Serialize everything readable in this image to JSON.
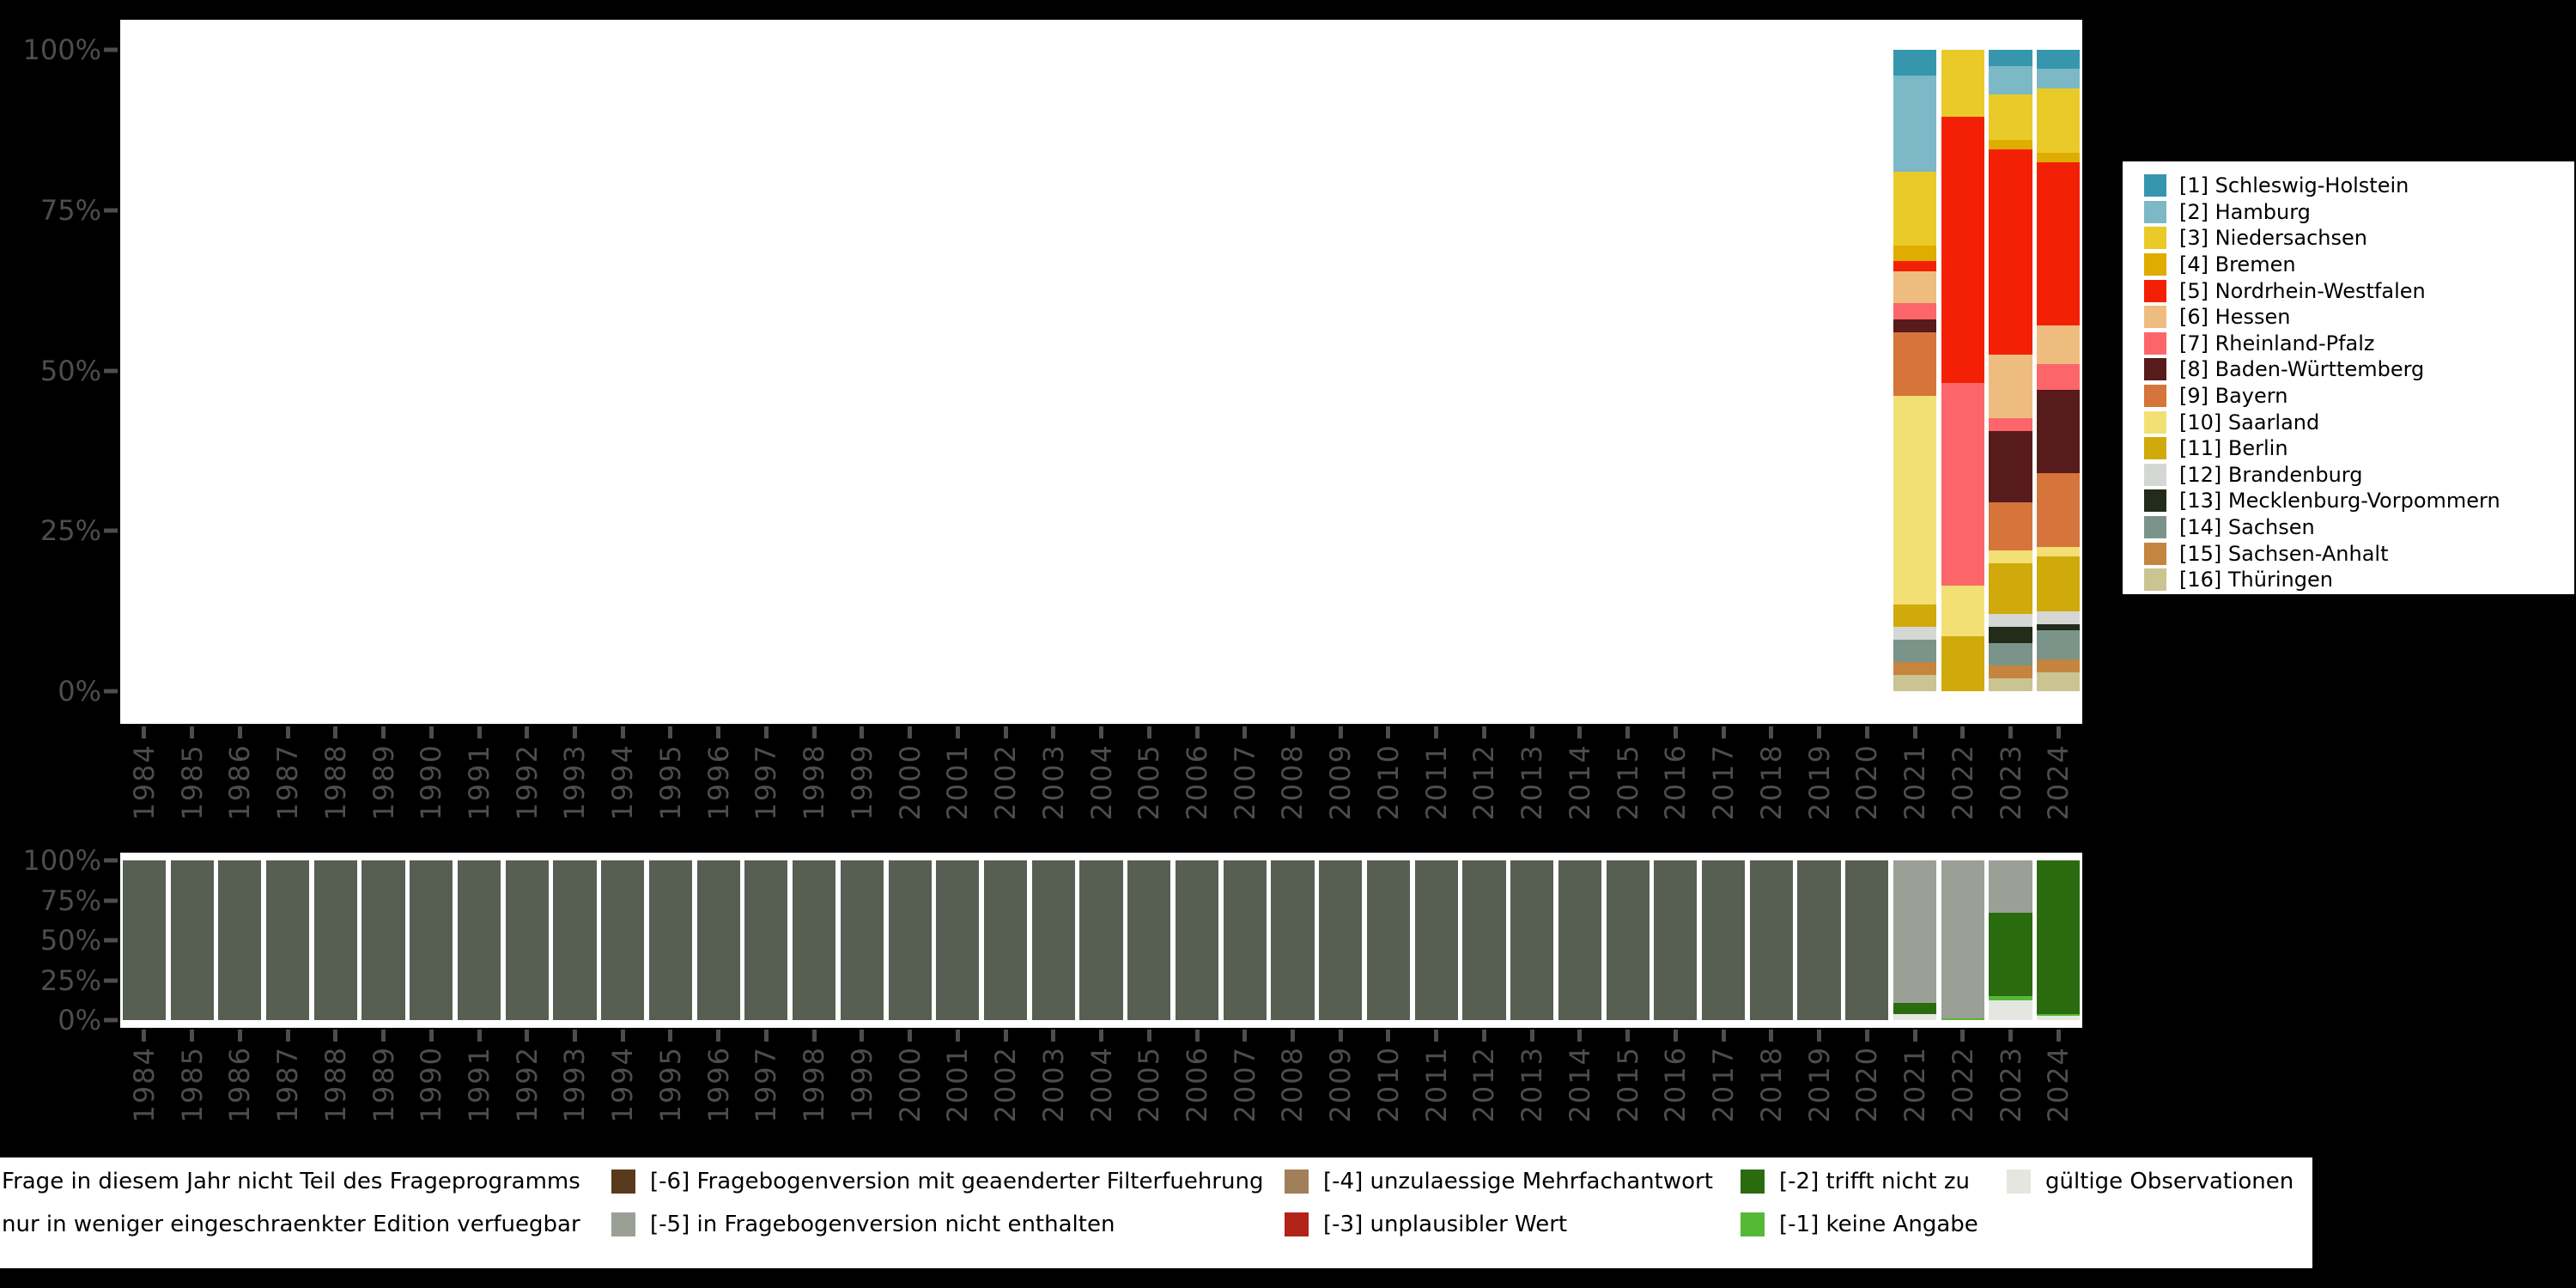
{
  "page": {
    "background": "#000000"
  },
  "axes": {
    "label_color": "#4D4D4D",
    "y_ticks_top_to_bottom": [
      "100%",
      "75%",
      "50%",
      "25%",
      "0%"
    ]
  },
  "chart_data": [
    {
      "id": "bundesland-distribution",
      "type": "bar",
      "stacked": true,
      "unit": "percent",
      "ylim": [
        0,
        100
      ],
      "grid": false,
      "legend_position": "right",
      "y_tick_labels": [
        "0%",
        "25%",
        "50%",
        "75%",
        "100%"
      ],
      "x": [
        "1984",
        "1985",
        "1986",
        "1987",
        "1988",
        "1989",
        "1990",
        "1991",
        "1992",
        "1993",
        "1994",
        "1995",
        "1996",
        "1997",
        "1998",
        "1999",
        "2000",
        "2001",
        "2002",
        "2003",
        "2004",
        "2005",
        "2006",
        "2007",
        "2008",
        "2009",
        "2010",
        "2011",
        "2012",
        "2013",
        "2014",
        "2015",
        "2016",
        "2017",
        "2018",
        "2019",
        "2020",
        "2021",
        "2022",
        "2023",
        "2024"
      ],
      "note": "years 1984-2020 show no bar (no data); stacking order top-to-bottom follows series order",
      "series": [
        {
          "name": "[1] Schleswig-Holstein",
          "color": "#3596AE",
          "default": 0,
          "by_year": {
            "2021": 4,
            "2022": 0,
            "2023": 2.5,
            "2024": 3
          }
        },
        {
          "name": "[2] Hamburg",
          "color": "#7CB8C6",
          "default": 0,
          "by_year": {
            "2021": 15,
            "2022": 0,
            "2023": 4.5,
            "2024": 3
          }
        },
        {
          "name": "[3] Niedersachsen",
          "color": "#E9CA28",
          "default": 0,
          "by_year": {
            "2021": 11.5,
            "2022": 10.5,
            "2023": 7,
            "2024": 10
          }
        },
        {
          "name": "[4] Bremen",
          "color": "#DFAC00",
          "default": 0,
          "by_year": {
            "2021": 2.5,
            "2022": 0,
            "2023": 1.5,
            "2024": 1.5
          }
        },
        {
          "name": "[5] Nordrhein-Westfalen",
          "color": "#F32005",
          "default": 0,
          "by_year": {
            "2021": 1.5,
            "2022": 41.5,
            "2023": 32,
            "2024": 25.5
          }
        },
        {
          "name": "[6] Hessen",
          "color": "#EFBC80",
          "default": 0,
          "by_year": {
            "2021": 5,
            "2022": 0,
            "2023": 10,
            "2024": 6
          }
        },
        {
          "name": "[7] Rheinland-Pfalz",
          "color": "#FC666B",
          "default": 0,
          "by_year": {
            "2021": 2.5,
            "2022": 31.5,
            "2023": 2,
            "2024": 4
          }
        },
        {
          "name": "[8] Baden-Württemberg",
          "color": "#571B1B",
          "default": 0,
          "by_year": {
            "2021": 2,
            "2022": 0,
            "2023": 11,
            "2024": 13
          }
        },
        {
          "name": "[9] Bayern",
          "color": "#D5743B",
          "default": 0,
          "by_year": {
            "2021": 10,
            "2022": 0,
            "2023": 7.5,
            "2024": 11.5
          }
        },
        {
          "name": "[10] Saarland",
          "color": "#F2E074",
          "default": 0,
          "by_year": {
            "2021": 32.5,
            "2022": 8,
            "2023": 2,
            "2024": 1.5
          }
        },
        {
          "name": "[11] Berlin",
          "color": "#D0A90B",
          "default": 0,
          "by_year": {
            "2021": 3.5,
            "2022": 8.5,
            "2023": 8,
            "2024": 8.5
          }
        },
        {
          "name": "[12] Brandenburg",
          "color": "#D5D7D4",
          "default": 0,
          "by_year": {
            "2021": 2,
            "2022": 0,
            "2023": 2,
            "2024": 2
          }
        },
        {
          "name": "[13] Mecklenburg-Vorpommern",
          "color": "#232B1B",
          "default": 0,
          "by_year": {
            "2021": 0,
            "2022": 0,
            "2023": 2.5,
            "2024": 1
          }
        },
        {
          "name": "[14] Sachsen",
          "color": "#7A948A",
          "default": 0,
          "by_year": {
            "2021": 3.5,
            "2022": 0,
            "2023": 3.5,
            "2024": 4.5
          }
        },
        {
          "name": "[15] Sachsen-Anhalt",
          "color": "#C5853F",
          "default": 0,
          "by_year": {
            "2021": 2,
            "2022": 0,
            "2023": 2,
            "2024": 2
          }
        },
        {
          "name": "[16] Thüringen",
          "color": "#C9C492",
          "default": 0,
          "by_year": {
            "2021": 2.5,
            "2022": 0,
            "2023": 2,
            "2024": 3
          }
        }
      ]
    },
    {
      "id": "missing-codes-distribution",
      "type": "bar",
      "stacked": true,
      "unit": "percent",
      "ylim": [
        0,
        100
      ],
      "grid": false,
      "legend_position": "bottom",
      "y_tick_labels": [
        "0%",
        "25%",
        "50%",
        "75%",
        "100%"
      ],
      "x": [
        "1984",
        "1985",
        "1986",
        "1987",
        "1988",
        "1989",
        "1990",
        "1991",
        "1992",
        "1993",
        "1994",
        "1995",
        "1996",
        "1997",
        "1998",
        "1999",
        "2000",
        "2001",
        "2002",
        "2003",
        "2004",
        "2005",
        "2006",
        "2007",
        "2008",
        "2009",
        "2010",
        "2011",
        "2012",
        "2013",
        "2014",
        "2015",
        "2016",
        "2017",
        "2018",
        "2019",
        "2020",
        "2021",
        "2022",
        "2023",
        "2024"
      ],
      "note": "1984-2020 bars are 100% 'Frage in diesem Jahr nicht Teil des Frageprogramms'",
      "series": [
        {
          "key": "not_in_program",
          "name": "Frage in diesem Jahr nicht Teil des Frageprogramms",
          "color": "#575F52",
          "swatch_visible": false,
          "default": 100,
          "by_year": {
            "2021": 0,
            "2022": 0,
            "2023": 0,
            "2024": 0
          }
        },
        {
          "key": "restricted_edition",
          "name": "nur in weniger eingeschraenkter Edition verfuegbar",
          "color": null,
          "swatch_visible": false,
          "default": 0,
          "by_year": {}
        },
        {
          "key": "m6",
          "name": "[-6] Fragebogenversion mit geaenderter Filterfuehrung",
          "color": "#5A3A1C",
          "swatch_visible": true,
          "default": 0,
          "by_year": {}
        },
        {
          "key": "m5",
          "name": "[-5] in Fragebogenversion nicht enthalten",
          "color": "#9BA097",
          "swatch_visible": true,
          "default": 0,
          "by_year": {
            "2021": 89,
            "2022": 99,
            "2023": 33,
            "2024": 0
          }
        },
        {
          "key": "m4",
          "name": "[-4] unzulaessige Mehrfachantwort",
          "color": "#A17F58",
          "swatch_visible": true,
          "default": 0,
          "by_year": {}
        },
        {
          "key": "m3",
          "name": "[-3] unplausibler Wert",
          "color": "#B2231A",
          "swatch_visible": true,
          "default": 0,
          "by_year": {}
        },
        {
          "key": "m2",
          "name": "[-2] trifft nicht zu",
          "color": "#2B6B10",
          "swatch_visible": true,
          "default": 0,
          "by_year": {
            "2021": 7.5,
            "2022": 0,
            "2023": 52,
            "2024": 96
          }
        },
        {
          "key": "m1",
          "name": "[-1] keine Angabe",
          "color": "#56B837",
          "swatch_visible": true,
          "default": 0,
          "by_year": {
            "2021": 0,
            "2022": 1,
            "2023": 2.5,
            "2024": 1.5
          }
        },
        {
          "key": "valid",
          "name": "gültige Observationen",
          "color": "#E4E7E0",
          "swatch_visible": true,
          "default": 0,
          "by_year": {
            "2021": 3.5,
            "2022": 0,
            "2023": 12.5,
            "2024": 2.5
          }
        }
      ],
      "legend_rows": [
        [
          "not_in_program",
          "m6",
          "m4",
          "m2",
          "valid"
        ],
        [
          "restricted_edition",
          "m5",
          "m3",
          "m1"
        ]
      ]
    }
  ]
}
